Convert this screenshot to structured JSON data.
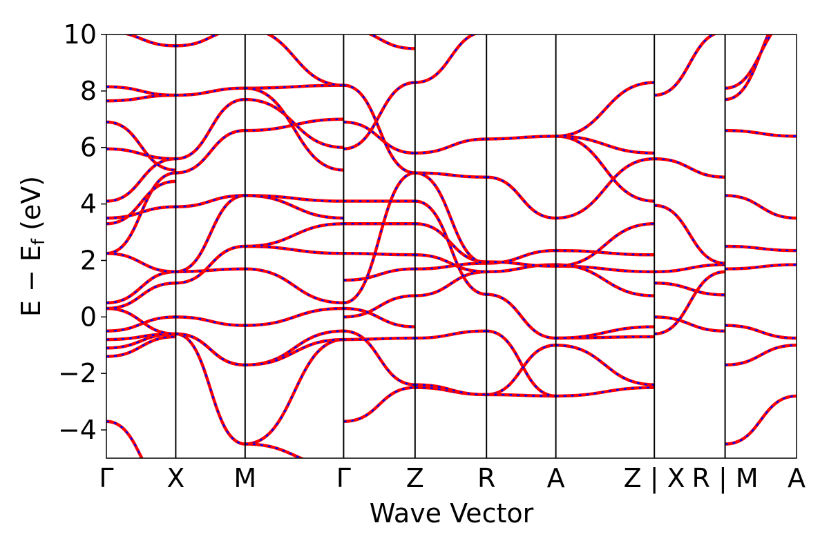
{
  "chart_data": {
    "type": "line",
    "xlabel": "Wave Vector",
    "ylabel": {
      "prefix": "E − E",
      "subscript": "f",
      "suffix": " (eV)"
    },
    "ylim": [
      -5,
      10
    ],
    "yticks": [
      -4,
      -2,
      0,
      2,
      4,
      6,
      8,
      10
    ],
    "ytick_labels": [
      "−4",
      "−2",
      "0",
      "2",
      "4",
      "6",
      "8",
      "10"
    ],
    "xlim": [
      0,
      9.95
    ],
    "kpoints": [
      {
        "x": 0.0,
        "label": "Γ"
      },
      {
        "x": 1.0,
        "label": "X"
      },
      {
        "x": 2.0,
        "label": "M"
      },
      {
        "x": 3.42,
        "label": "Γ"
      },
      {
        "x": 4.45,
        "label": "Z"
      },
      {
        "x": 5.48,
        "label": "R"
      },
      {
        "x": 6.48,
        "label": "A"
      },
      {
        "x": 7.9,
        "label": "Z | X"
      },
      {
        "x": 8.92,
        "label": "R | M"
      },
      {
        "x": 9.95,
        "label": "A"
      }
    ],
    "segments": [
      {
        "x0": 0.0,
        "x1": 1.0,
        "from": "Γ",
        "to": "X",
        "bands": [
          [
            -3.7,
            -6.2
          ],
          [
            -1.4,
            -0.7
          ],
          [
            -1.1,
            -0.6
          ],
          [
            -0.8,
            -0.6
          ],
          [
            -0.5,
            0.0
          ],
          [
            0.3,
            -0.6
          ],
          [
            0.3,
            1.2
          ],
          [
            0.5,
            1.6
          ],
          [
            2.25,
            1.6
          ],
          [
            2.25,
            5.1
          ],
          [
            3.3,
            4.8
          ],
          [
            3.5,
            3.9
          ],
          [
            4.1,
            5.6
          ],
          [
            5.95,
            5.6
          ],
          [
            6.9,
            5.2
          ],
          [
            7.65,
            7.85
          ],
          [
            8.15,
            7.85
          ],
          [
            10.1,
            9.6
          ]
        ]
      },
      {
        "x0": 1.0,
        "x1": 2.0,
        "from": "X",
        "to": "M",
        "bands": [
          [
            -0.6,
            -4.5
          ],
          [
            -0.6,
            -1.7
          ],
          [
            -0.6,
            -1.7
          ],
          [
            0.0,
            -0.3
          ],
          [
            1.2,
            2.5
          ],
          [
            1.6,
            1.7
          ],
          [
            1.6,
            4.3
          ],
          [
            3.9,
            4.3
          ],
          [
            5.1,
            6.6
          ],
          [
            5.6,
            7.7
          ],
          [
            7.85,
            8.1
          ],
          [
            9.6,
            10.2
          ]
        ]
      },
      {
        "x0": 2.0,
        "x1": 3.42,
        "from": "M",
        "to": "Γ",
        "bands": [
          [
            -4.5,
            -0.8
          ],
          [
            -4.5,
            -5.3
          ],
          [
            -1.7,
            -0.5
          ],
          [
            -1.7,
            -0.8
          ],
          [
            -0.3,
            0.3
          ],
          [
            1.7,
            0.5
          ],
          [
            2.5,
            2.25
          ],
          [
            2.5,
            3.3
          ],
          [
            4.3,
            4.1
          ],
          [
            4.3,
            3.5
          ],
          [
            6.6,
            7.0
          ],
          [
            7.7,
            6.0
          ],
          [
            8.1,
            8.2
          ],
          [
            8.1,
            5.2
          ],
          [
            10.2,
            8.2
          ]
        ]
      },
      {
        "x0": 3.42,
        "x1": 4.45,
        "from": "Γ",
        "to": "Z",
        "bands": [
          [
            -3.7,
            -2.5
          ],
          [
            -0.8,
            -0.75
          ],
          [
            -0.5,
            -2.4
          ],
          [
            0.0,
            0.75
          ],
          [
            0.3,
            -0.35
          ],
          [
            0.5,
            5.1
          ],
          [
            1.3,
            1.7
          ],
          [
            2.25,
            2.2
          ],
          [
            3.3,
            3.3
          ],
          [
            4.1,
            4.1
          ],
          [
            5.95,
            8.3
          ],
          [
            6.9,
            5.8
          ],
          [
            8.2,
            5.1
          ],
          [
            10.2,
            9.5
          ]
        ]
      },
      {
        "x0": 4.45,
        "x1": 5.48,
        "from": "Z",
        "to": "R",
        "bands": [
          [
            -2.5,
            -2.75
          ],
          [
            -2.4,
            -2.75
          ],
          [
            -0.75,
            -0.5
          ],
          [
            0.75,
            1.6
          ],
          [
            1.7,
            1.9
          ],
          [
            2.2,
            1.6
          ],
          [
            3.3,
            1.95
          ],
          [
            4.1,
            0.8
          ],
          [
            5.1,
            4.95
          ],
          [
            5.1,
            1.9
          ],
          [
            5.8,
            6.3
          ],
          [
            8.3,
            10.1
          ]
        ]
      },
      {
        "x0": 5.48,
        "x1": 6.48,
        "from": "R",
        "to": "A",
        "bands": [
          [
            -2.75,
            -1.0
          ],
          [
            -2.75,
            -2.8
          ],
          [
            -0.5,
            -2.8
          ],
          [
            0.8,
            -0.75
          ],
          [
            1.6,
            1.85
          ],
          [
            1.9,
            2.35
          ],
          [
            1.95,
            1.8
          ],
          [
            4.95,
            3.5
          ],
          [
            6.3,
            6.4
          ]
        ]
      },
      {
        "x0": 6.48,
        "x1": 7.9,
        "from": "A",
        "to": "Z",
        "bands": [
          [
            -2.8,
            -2.5
          ],
          [
            -1.0,
            -2.4
          ],
          [
            -0.75,
            -0.7
          ],
          [
            -0.75,
            -0.35
          ],
          [
            1.8,
            1.6
          ],
          [
            1.85,
            0.75
          ],
          [
            2.35,
            2.2
          ],
          [
            1.8,
            3.3
          ],
          [
            3.5,
            5.6
          ],
          [
            6.4,
            5.8
          ],
          [
            6.4,
            4.1
          ],
          [
            6.4,
            8.3
          ]
        ]
      },
      {
        "x0": 7.9,
        "x1": 8.92,
        "from": "X",
        "to": "R",
        "bands": [
          [
            -0.6,
            1.6
          ],
          [
            0.0,
            -0.5
          ],
          [
            1.2,
            0.78
          ],
          [
            1.6,
            1.85
          ],
          [
            3.95,
            1.9
          ],
          [
            5.6,
            4.95
          ],
          [
            7.85,
            10.1
          ]
        ]
      },
      {
        "x0": 8.92,
        "x1": 9.95,
        "from": "M",
        "to": "A",
        "bands": [
          [
            -4.5,
            -2.8
          ],
          [
            -1.7,
            -1.0
          ],
          [
            -0.3,
            -0.75
          ],
          [
            1.7,
            1.85
          ],
          [
            2.5,
            2.35
          ],
          [
            4.3,
            3.5
          ],
          [
            6.6,
            6.4
          ],
          [
            7.7,
            11.0
          ],
          [
            8.1,
            10.6
          ]
        ]
      }
    ]
  }
}
